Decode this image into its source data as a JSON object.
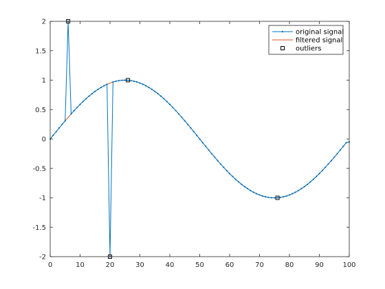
{
  "chart_data": {
    "type": "line",
    "title": "",
    "xlabel": "",
    "ylabel": "",
    "xlim": [
      0,
      100
    ],
    "ylim": [
      -2,
      2
    ],
    "xticks": [
      0,
      10,
      20,
      30,
      40,
      50,
      60,
      70,
      80,
      90,
      100
    ],
    "yticks": [
      -2,
      -1.5,
      -1,
      -0.5,
      0,
      0.5,
      1,
      1.5,
      2
    ],
    "xtick_labels": [
      "0",
      "10",
      "20",
      "30",
      "40",
      "50",
      "60",
      "70",
      "80",
      "90",
      "100"
    ],
    "ytick_labels": [
      "-2",
      "-1.5",
      "-1",
      "-0.5",
      "0",
      "0.5",
      "1",
      "1.5",
      "2"
    ],
    "grid": false,
    "legend_location": "top-right",
    "series": [
      {
        "name": "original signal",
        "color": "#0072bd",
        "marker": "dot",
        "x": [
          0,
          1,
          2,
          3,
          4,
          5,
          6,
          7,
          8,
          9,
          10,
          11,
          12,
          13,
          14,
          15,
          16,
          17,
          18,
          19,
          20,
          21,
          22,
          23,
          24,
          25,
          26,
          27,
          28,
          29,
          30,
          31,
          32,
          33,
          34,
          35,
          36,
          37,
          38,
          39,
          40,
          41,
          42,
          43,
          44,
          45,
          46,
          47,
          48,
          49,
          50,
          51,
          52,
          53,
          54,
          55,
          56,
          57,
          58,
          59,
          60,
          61,
          62,
          63,
          64,
          65,
          66,
          67,
          68,
          69,
          70,
          71,
          72,
          73,
          74,
          75,
          76,
          77,
          78,
          79,
          80,
          81,
          82,
          83,
          84,
          85,
          86,
          87,
          88,
          89,
          90,
          91,
          92,
          93,
          94,
          95,
          96,
          97,
          98,
          99,
          100
        ],
        "y": [
          0,
          0.063,
          0.125,
          0.187,
          0.249,
          0.309,
          2,
          0.426,
          0.482,
          0.536,
          0.588,
          0.637,
          0.685,
          0.729,
          0.771,
          0.809,
          0.844,
          0.876,
          0.905,
          0.93,
          -2,
          0.969,
          0.982,
          0.992,
          0.998,
          1,
          0.998,
          0.992,
          0.982,
          0.969,
          0.951,
          0.93,
          0.905,
          0.876,
          0.844,
          0.809,
          0.771,
          0.729,
          0.685,
          0.637,
          0.588,
          0.536,
          0.482,
          0.426,
          0.368,
          0.309,
          0.249,
          0.187,
          0.125,
          0.063,
          0,
          -0.063,
          -0.125,
          -0.187,
          -0.249,
          -0.309,
          -0.368,
          -0.426,
          -0.482,
          -0.536,
          -0.588,
          -0.637,
          -0.685,
          -0.729,
          -0.771,
          -0.809,
          -0.844,
          -0.876,
          -0.905,
          -0.93,
          -0.951,
          -0.969,
          -0.982,
          -0.992,
          -0.998,
          -1,
          -0.998,
          -0.992,
          -0.982,
          -0.969,
          -0.951,
          -0.93,
          -0.905,
          -0.876,
          -0.844,
          -0.809,
          -0.771,
          -0.729,
          -0.685,
          -0.637,
          -0.588,
          -0.536,
          -0.482,
          -0.426,
          -0.368,
          -0.309,
          -0.249,
          -0.187,
          -0.125,
          -0.063,
          -0.05
        ]
      },
      {
        "name": "filtered signal",
        "color": "#d95319",
        "marker": "none",
        "x": [
          0,
          1,
          2,
          3,
          4,
          5,
          6,
          7,
          8,
          9,
          10,
          11,
          12,
          13,
          14,
          15,
          16,
          17,
          18,
          19,
          20,
          21,
          22,
          23,
          24,
          25,
          26,
          27,
          28,
          29,
          30,
          31,
          32,
          33,
          34,
          35,
          36,
          37,
          38,
          39,
          40,
          41,
          42,
          43,
          44,
          45,
          46,
          47,
          48,
          49,
          50,
          51,
          52,
          53,
          54,
          55,
          56,
          57,
          58,
          59,
          60,
          61,
          62,
          63,
          64,
          65,
          66,
          67,
          68,
          69,
          70,
          71,
          72,
          73,
          74,
          75,
          76,
          77,
          78,
          79,
          80,
          81,
          82,
          83,
          84,
          85,
          86,
          87,
          88,
          89,
          90,
          91,
          92,
          93,
          94,
          95,
          96,
          97,
          98,
          99,
          100
        ],
        "y": [
          0,
          0.063,
          0.125,
          0.187,
          0.249,
          0.309,
          0.368,
          0.426,
          0.482,
          0.536,
          0.588,
          0.637,
          0.685,
          0.729,
          0.771,
          0.809,
          0.844,
          0.876,
          0.905,
          0.93,
          0.951,
          0.969,
          0.982,
          0.992,
          0.998,
          1,
          0.998,
          0.992,
          0.982,
          0.969,
          0.951,
          0.93,
          0.905,
          0.876,
          0.844,
          0.809,
          0.771,
          0.729,
          0.685,
          0.637,
          0.588,
          0.536,
          0.482,
          0.426,
          0.368,
          0.309,
          0.249,
          0.187,
          0.125,
          0.063,
          0,
          -0.063,
          -0.125,
          -0.187,
          -0.249,
          -0.309,
          -0.368,
          -0.426,
          -0.482,
          -0.536,
          -0.588,
          -0.637,
          -0.685,
          -0.729,
          -0.771,
          -0.809,
          -0.844,
          -0.876,
          -0.905,
          -0.93,
          -0.951,
          -0.969,
          -0.982,
          -0.992,
          -0.998,
          -1,
          -0.998,
          -0.992,
          -0.982,
          -0.969,
          -0.951,
          -0.93,
          -0.905,
          -0.876,
          -0.844,
          -0.809,
          -0.771,
          -0.729,
          -0.685,
          -0.637,
          -0.588,
          -0.536,
          -0.482,
          -0.426,
          -0.368,
          -0.309,
          -0.249,
          -0.187,
          -0.125,
          -0.063,
          -0.05
        ]
      },
      {
        "name": "outliers",
        "color": "#000000",
        "marker": "square",
        "x": [
          6,
          20,
          26,
          76
        ],
        "y": [
          2,
          -2,
          1,
          -1
        ]
      }
    ]
  }
}
